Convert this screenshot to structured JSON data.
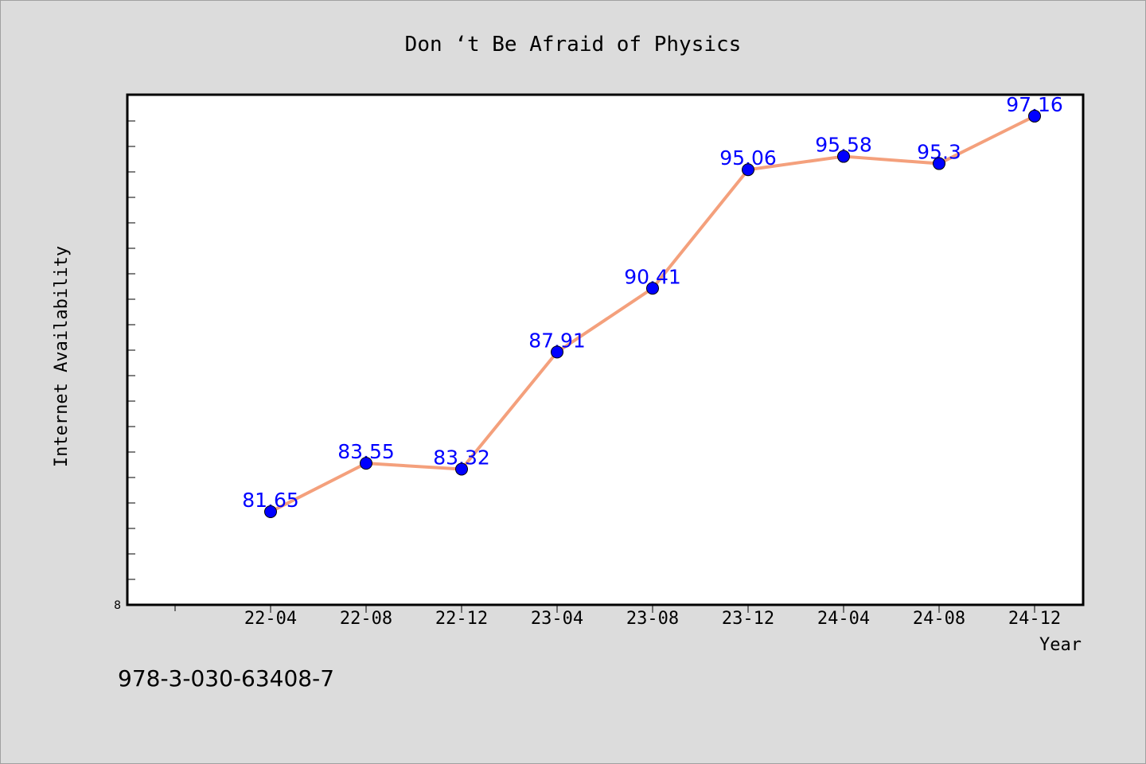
{
  "chart_data": {
    "type": "line",
    "title": "Don ‘t Be Afraid of Physics",
    "xlabel": "Year",
    "ylabel": "Internet Availability",
    "categories": [
      "22-04",
      "22-08",
      "22-12",
      "23-04",
      "23-08",
      "23-12",
      "24-04",
      "24-08",
      "24-12"
    ],
    "series": [
      {
        "values": [
          81.65,
          83.55,
          83.32,
          87.91,
          90.41,
          95.06,
          95.58,
          95.3,
          97.16
        ],
        "labels": [
          "81.65",
          "83.55",
          "83.32",
          "87.91",
          "90.41",
          "95.06",
          "95.58",
          "95.3",
          "97.16"
        ]
      }
    ],
    "ylim": [
      78,
      98
    ],
    "y_tick_label": "8",
    "grid": false,
    "colors": {
      "line": "#f4a07c",
      "marker": "#0000ff",
      "data_label": "#0000ff",
      "plot_bg": "#ffffff",
      "page_bg": "#dcdcdc"
    }
  },
  "footer": {
    "code": "978-3-030-63408-7"
  }
}
